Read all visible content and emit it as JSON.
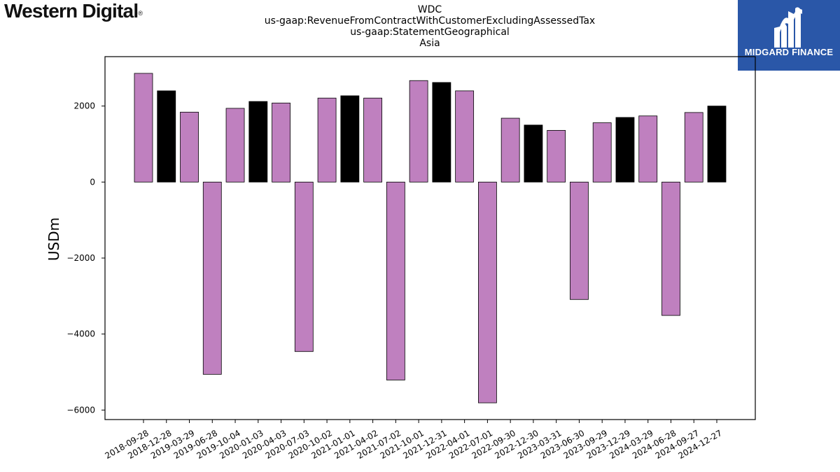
{
  "header": {
    "company_logo_text": "Western Digital",
    "company_logo_mark": "®",
    "brand_text": "MIDGARD FINANCE",
    "brand_icon": "midgard-logo-icon"
  },
  "chart_data": {
    "type": "bar",
    "title_lines": [
      "WDC",
      "us-gaap:RevenueFromContractWithCustomerExcludingAssessedTax",
      "us-gaap:StatementGeographical",
      "Asia"
    ],
    "xlabel": "",
    "ylabel": "USDm",
    "ylim": [
      -6250,
      3300
    ],
    "yticks": [
      -6000,
      -4000,
      -2000,
      0,
      2000
    ],
    "ytick_labels": [
      "−6000",
      "−4000",
      "−2000",
      "0",
      "2000"
    ],
    "grid": false,
    "legend": "none",
    "colors": {
      "purple": "#bf80bf",
      "black": "#000000"
    },
    "categories": [
      "2018-09-28",
      "2018-12-28",
      "2019-03-29",
      "2019-06-28",
      "2019-10-04",
      "2020-01-03",
      "2020-04-03",
      "2020-07-03",
      "2020-10-02",
      "2021-01-01",
      "2021-04-02",
      "2021-07-02",
      "2021-10-01",
      "2021-12-31",
      "2022-04-01",
      "2022-07-01",
      "2022-09-30",
      "2022-12-30",
      "2023-03-31",
      "2023-06-30",
      "2023-09-29",
      "2023-12-29",
      "2024-03-29",
      "2024-06-28",
      "2024-09-27",
      "2024-12-27"
    ],
    "values": [
      2860,
      2400,
      1840,
      -5060,
      1940,
      2120,
      2080,
      -4460,
      2210,
      2270,
      2210,
      -5210,
      2670,
      2620,
      2400,
      -5810,
      1680,
      1500,
      1360,
      -3090,
      1560,
      1700,
      1740,
      -3510,
      1830,
      2000
    ],
    "bar_colors": [
      "purple",
      "black",
      "purple",
      "purple",
      "purple",
      "black",
      "purple",
      "purple",
      "purple",
      "black",
      "purple",
      "purple",
      "purple",
      "black",
      "purple",
      "purple",
      "purple",
      "black",
      "purple",
      "purple",
      "purple",
      "black",
      "purple",
      "purple",
      "purple",
      "black"
    ]
  }
}
